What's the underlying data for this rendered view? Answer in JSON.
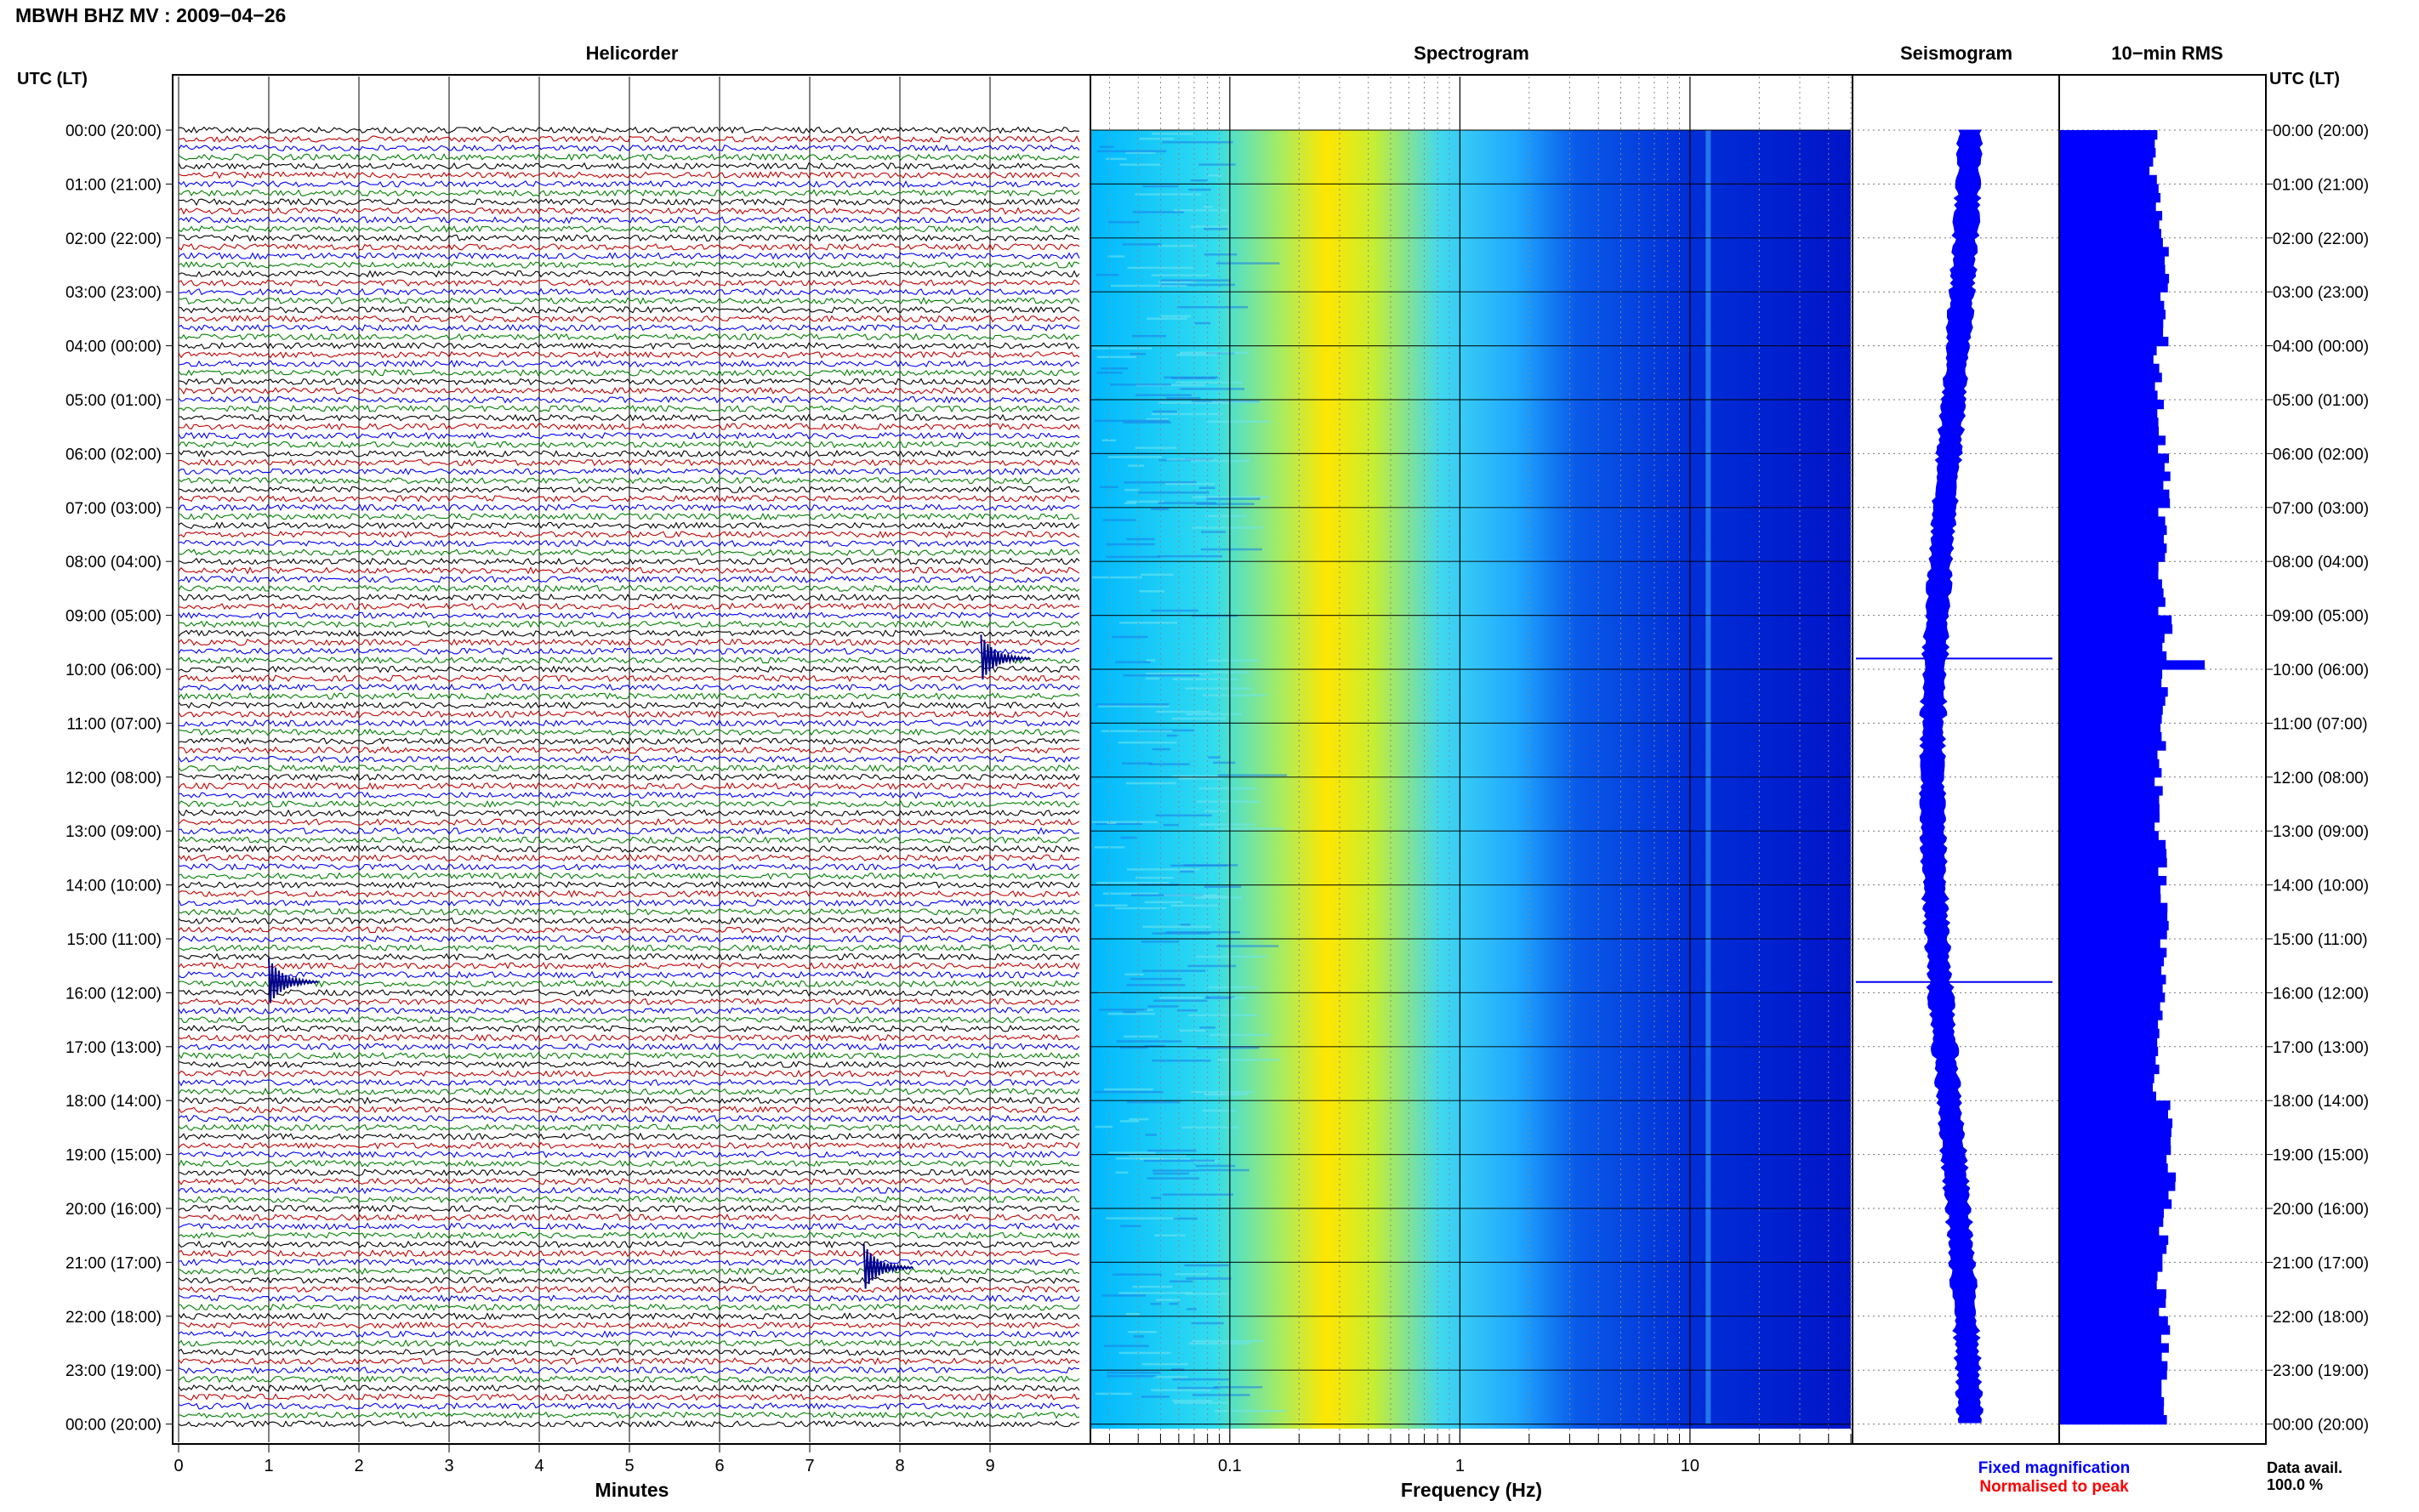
{
  "header": {
    "title": "MBWH BHZ MV : 2009−04−26",
    "time_axis_label": "UTC (LT)"
  },
  "panels": {
    "helicorder": "Helicorder",
    "spectrogram": "Spectrogram",
    "seismogram": "Seismogram",
    "rms": "10−min RMS"
  },
  "legend": {
    "fixed": "Fixed magnification",
    "normalised": "Normalised to peak",
    "fixed_color": "#0000ff",
    "normalised_color": "#ff0000",
    "data_avail_label": "Data avail.",
    "data_avail_value": "100.0 %"
  },
  "chart_data": [
    {
      "type": "line",
      "panel": "Helicorder",
      "xlabel": "Minutes",
      "xlim": [
        0,
        10
      ],
      "x_ticks": [
        "0",
        "1",
        "2",
        "3",
        "4",
        "5",
        "6",
        "7",
        "8",
        "9"
      ],
      "time_labels": [
        "00:00 (20:00)",
        "01:00 (21:00)",
        "02:00 (22:00)",
        "03:00 (23:00)",
        "04:00 (00:00)",
        "05:00 (01:00)",
        "06:00 (02:00)",
        "07:00 (03:00)",
        "08:00 (04:00)",
        "09:00 (05:00)",
        "10:00 (06:00)",
        "11:00 (07:00)",
        "12:00 (08:00)",
        "13:00 (09:00)",
        "14:00 (10:00)",
        "15:00 (11:00)",
        "16:00 (12:00)",
        "17:00 (13:00)",
        "18:00 (14:00)",
        "19:00 (15:00)",
        "20:00 (16:00)",
        "21:00 (17:00)",
        "22:00 (18:00)",
        "23:00 (19:00)",
        "00:00 (20:00)"
      ],
      "trace_colors": [
        "#000000",
        "#c00000",
        "#0000ff",
        "#008000"
      ],
      "traces_per_hour": 6,
      "events": [
        {
          "hour": 9.8,
          "minute": 8.9
        },
        {
          "hour": 15.8,
          "minute": 1.0
        },
        {
          "hour": 21.1,
          "minute": 7.6
        }
      ]
    },
    {
      "type": "heatmap",
      "panel": "Spectrogram",
      "xlabel": "Frequency (Hz)",
      "x_scale": "log",
      "xlim": [
        0.025,
        50
      ],
      "x_ticks": [
        "0.1",
        "1",
        "10"
      ],
      "colormap": [
        "#00b8ff",
        "#30e0e0",
        "#e8ea30",
        "#ffe000",
        "#20a0ff",
        "#0050e0",
        "#0014c8"
      ]
    },
    {
      "type": "line",
      "panel": "Seismogram",
      "color": "#0000ff",
      "events": [
        {
          "hour": 9.8
        },
        {
          "hour": 15.8
        }
      ]
    },
    {
      "type": "bar",
      "panel": "10-min RMS",
      "color": "#0000ff",
      "note_rel_values": "relative RMS per 10-minute window, fraction of panel width",
      "values": [
        0.45,
        0.48,
        0.52,
        0.5,
        0.47,
        0.49,
        0.51,
        0.5,
        0.49,
        0.52,
        0.5,
        0.49,
        0.48,
        0.5,
        0.51,
        0.5,
        0.49,
        0.47,
        0.52,
        0.54,
        0.5,
        0.49,
        0.51,
        0.5
      ]
    }
  ]
}
